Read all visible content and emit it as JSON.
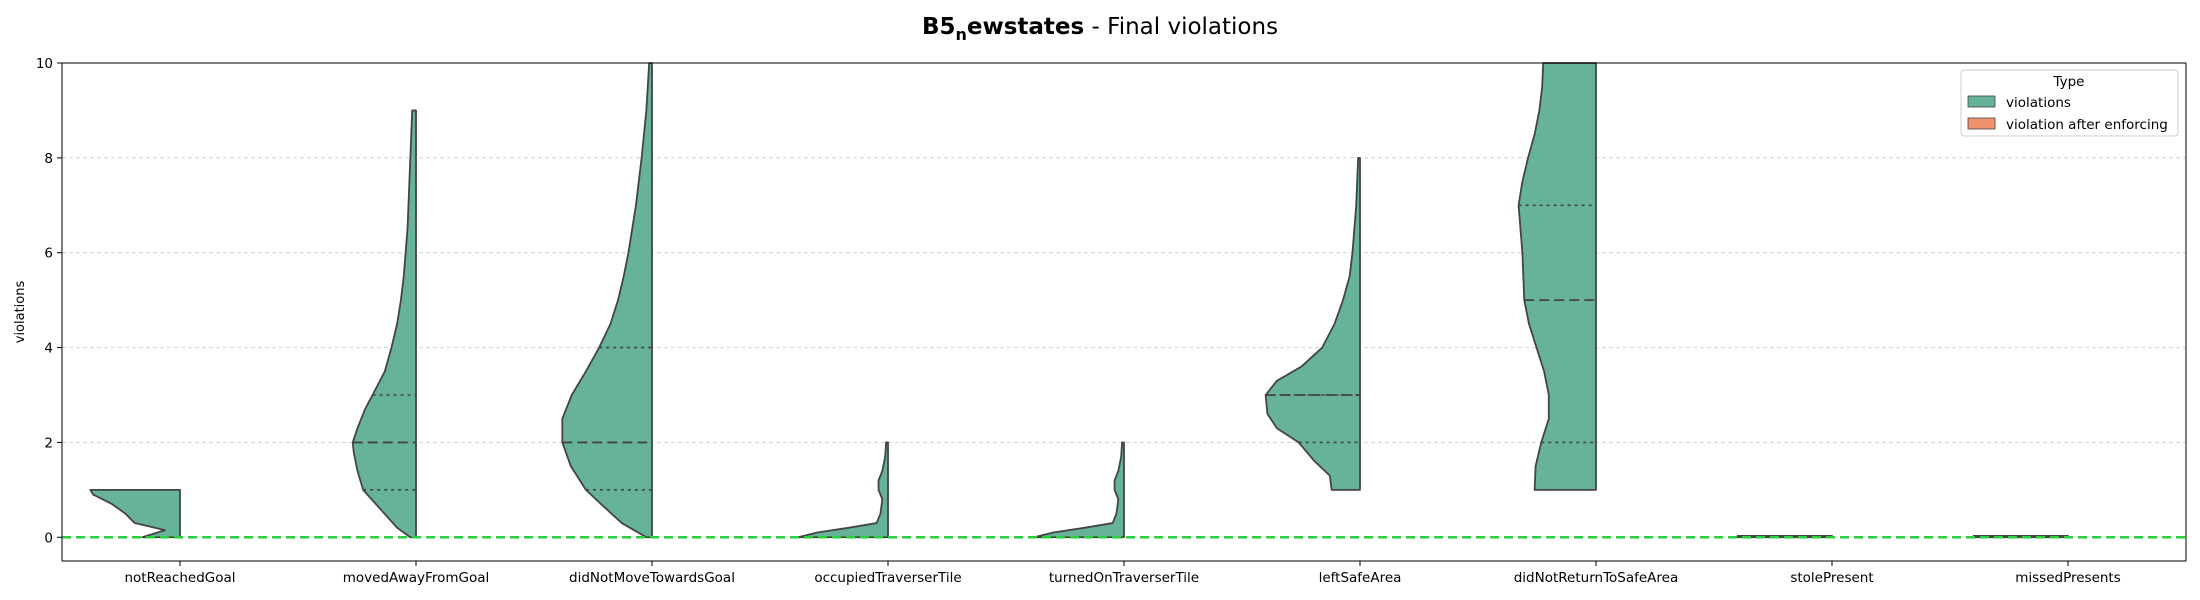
{
  "chart_data": {
    "type": "violin",
    "title_bold": "B5",
    "title_sub": "n",
    "title_bold_rest": "ewstates",
    "title_rest": " - Final violations",
    "ylabel": "violations",
    "ylim": [
      -0.5,
      10
    ],
    "yticks": [
      "0",
      "2",
      "4",
      "6",
      "8",
      "10"
    ],
    "grid": "horizontal dashed",
    "reference_line": {
      "y": 0,
      "color": "#2ecc40"
    },
    "legend": {
      "title": "Type",
      "position": "top-right",
      "entries": [
        {
          "label": "violations",
          "color": "#66b398"
        },
        {
          "label": "violation after enforcing",
          "color": "#f0916b"
        }
      ]
    },
    "categories": [
      "notReachedGoal",
      "movedAwayFromGoal",
      "didNotMoveTowardsGoal",
      "occupiedTraverserTile",
      "turnedOnTraverserTile",
      "leftSafeArea",
      "didNotReturnToSafeArea",
      "stolePresent",
      "missedPresents"
    ],
    "series": [
      {
        "name": "violations",
        "violins": [
          {
            "profile": [
              [
                0,
                0.4
              ],
              [
                0.15,
                0.16
              ],
              [
                0.3,
                0.48
              ],
              [
                0.5,
                0.58
              ],
              [
                0.7,
                0.72
              ],
              [
                0.9,
                0.92
              ],
              [
                1,
                0.95
              ]
            ],
            "quartiles": [],
            "median": null
          },
          {
            "profile": [
              [
                0,
                0.06
              ],
              [
                0.2,
                0.2
              ],
              [
                0.6,
                0.38
              ],
              [
                1,
                0.56
              ],
              [
                1.4,
                0.62
              ],
              [
                1.8,
                0.66
              ],
              [
                2,
                0.67
              ],
              [
                2.3,
                0.62
              ],
              [
                2.7,
                0.54
              ],
              [
                3,
                0.46
              ],
              [
                3.5,
                0.33
              ],
              [
                4,
                0.26
              ],
              [
                4.5,
                0.2
              ],
              [
                5,
                0.16
              ],
              [
                5.5,
                0.13
              ],
              [
                6,
                0.11
              ],
              [
                6.5,
                0.09
              ],
              [
                7,
                0.08
              ],
              [
                7.5,
                0.07
              ],
              [
                8,
                0.06
              ],
              [
                8.5,
                0.05
              ],
              [
                9,
                0.04
              ]
            ],
            "quartiles": [
              1,
              3
            ],
            "median": 2
          },
          {
            "profile": [
              [
                0,
                0.06
              ],
              [
                0.3,
                0.32
              ],
              [
                0.7,
                0.54
              ],
              [
                1,
                0.7
              ],
              [
                1.5,
                0.86
              ],
              [
                2,
                0.95
              ],
              [
                2.5,
                0.95
              ],
              [
                3,
                0.85
              ],
              [
                3.5,
                0.7
              ],
              [
                4,
                0.56
              ],
              [
                4.5,
                0.44
              ],
              [
                5,
                0.36
              ],
              [
                5.5,
                0.3
              ],
              [
                6,
                0.25
              ],
              [
                7,
                0.17
              ],
              [
                8,
                0.11
              ],
              [
                9,
                0.06
              ],
              [
                10,
                0.03
              ]
            ],
            "quartiles": [
              1,
              4
            ],
            "median": 2
          },
          {
            "profile": [
              [
                0,
                0.95
              ],
              [
                0.1,
                0.75
              ],
              [
                0.2,
                0.42
              ],
              [
                0.3,
                0.12
              ],
              [
                0.5,
                0.08
              ],
              [
                0.8,
                0.06
              ],
              [
                1,
                0.1
              ],
              [
                1.2,
                0.1
              ],
              [
                1.4,
                0.06
              ],
              [
                1.7,
                0.03
              ],
              [
                2,
                0.02
              ]
            ],
            "quartiles": [],
            "median": null
          },
          {
            "profile": [
              [
                0,
                0.95
              ],
              [
                0.1,
                0.75
              ],
              [
                0.2,
                0.42
              ],
              [
                0.3,
                0.12
              ],
              [
                0.5,
                0.08
              ],
              [
                0.8,
                0.06
              ],
              [
                1,
                0.1
              ],
              [
                1.2,
                0.1
              ],
              [
                1.4,
                0.06
              ],
              [
                1.7,
                0.03
              ],
              [
                2,
                0.02
              ]
            ],
            "quartiles": [],
            "median": null
          },
          {
            "profile": [
              [
                1,
                0.3
              ],
              [
                1.3,
                0.32
              ],
              [
                1.6,
                0.48
              ],
              [
                2,
                0.65
              ],
              [
                2.3,
                0.88
              ],
              [
                2.6,
                0.98
              ],
              [
                3,
                1
              ],
              [
                3.3,
                0.88
              ],
              [
                3.6,
                0.62
              ],
              [
                4,
                0.4
              ],
              [
                4.5,
                0.27
              ],
              [
                5,
                0.18
              ],
              [
                5.5,
                0.11
              ],
              [
                6,
                0.08
              ],
              [
                6.5,
                0.06
              ],
              [
                7,
                0.04
              ],
              [
                7.5,
                0.03
              ],
              [
                8,
                0.02
              ]
            ],
            "quartiles": [
              2,
              3
            ],
            "median": 3
          },
          {
            "profile": [
              [
                1,
                0.65
              ],
              [
                1.5,
                0.64
              ],
              [
                2,
                0.58
              ],
              [
                2.5,
                0.5
              ],
              [
                3,
                0.5
              ],
              [
                3.5,
                0.55
              ],
              [
                4,
                0.63
              ],
              [
                4.5,
                0.71
              ],
              [
                5,
                0.76
              ],
              [
                5.5,
                0.77
              ],
              [
                6,
                0.78
              ],
              [
                6.5,
                0.8
              ],
              [
                7,
                0.82
              ],
              [
                7.5,
                0.78
              ],
              [
                8,
                0.72
              ],
              [
                8.5,
                0.65
              ],
              [
                9,
                0.6
              ],
              [
                9.5,
                0.57
              ],
              [
                10,
                0.56
              ]
            ],
            "quartiles": [
              2,
              7
            ],
            "median": 5
          },
          {
            "profile": [
              [
                0,
                1
              ],
              [
                0.03,
                1
              ]
            ],
            "quartiles": [],
            "median": null
          },
          {
            "profile": [
              [
                0,
                1
              ],
              [
                0.03,
                1
              ]
            ],
            "quartiles": [],
            "median": null
          }
        ]
      },
      {
        "name": "violation after enforcing",
        "violins": []
      }
    ]
  }
}
